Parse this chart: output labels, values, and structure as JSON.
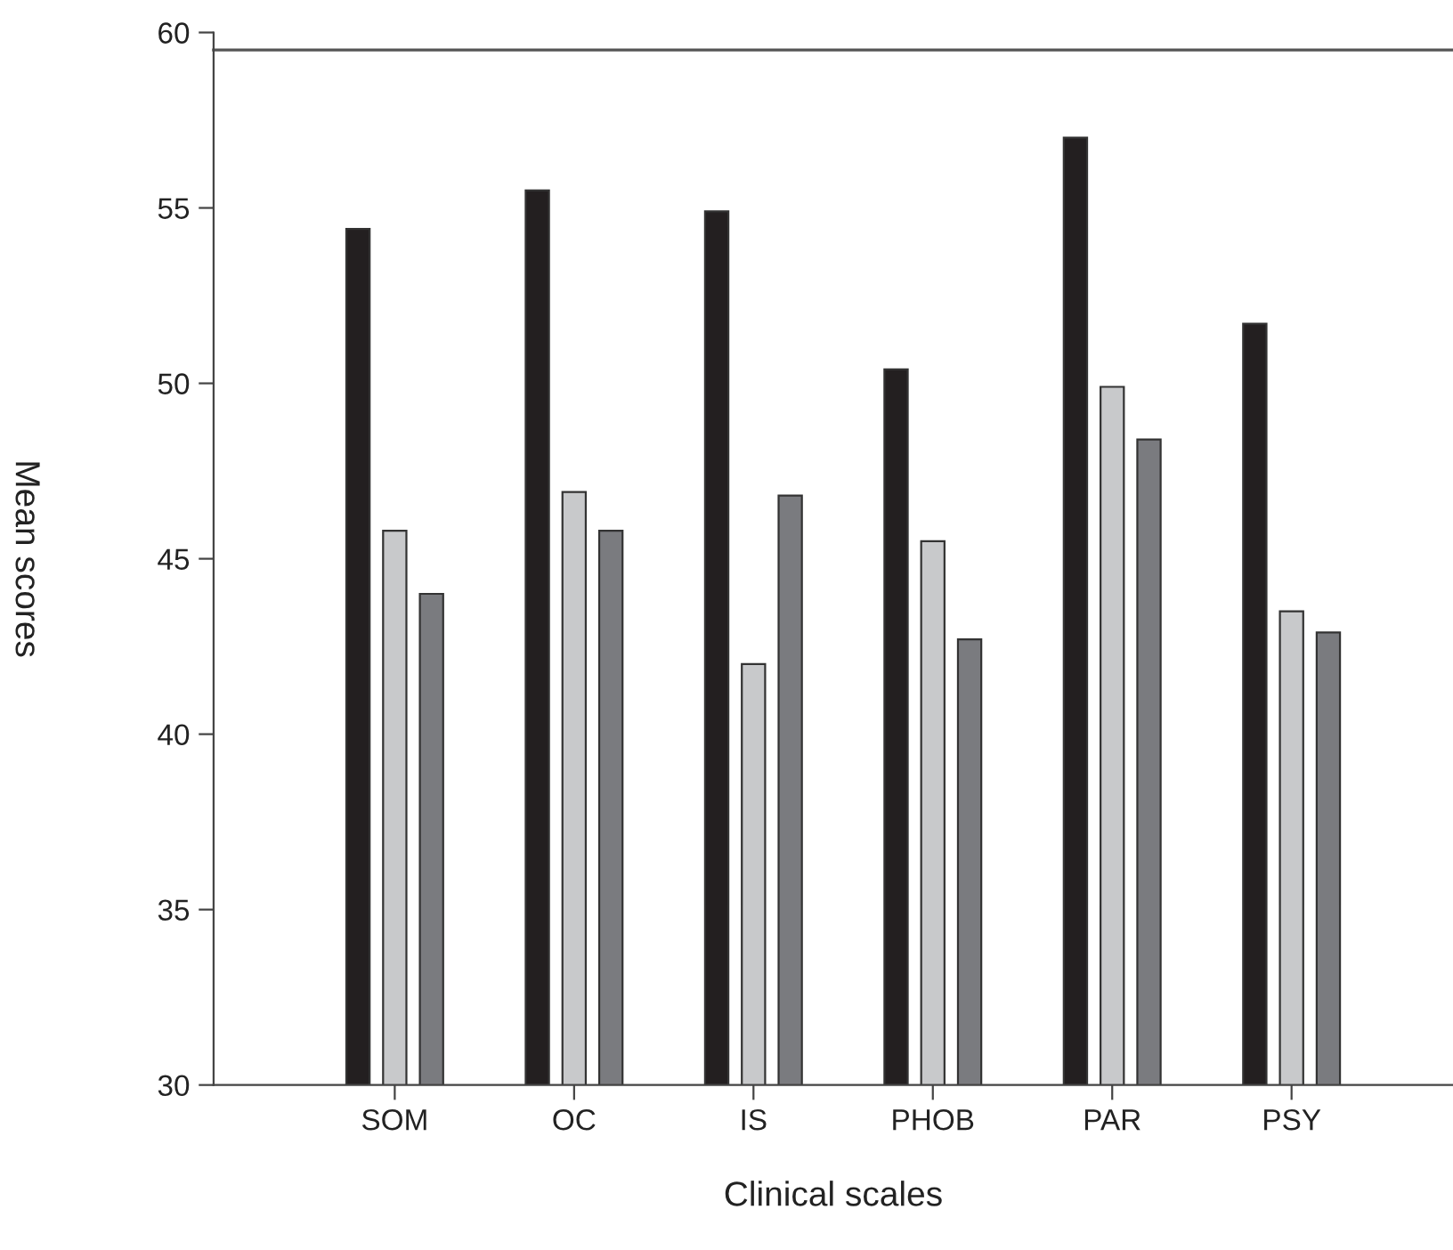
{
  "chart_data": {
    "type": "bar",
    "xlabel": "Clinical scales",
    "ylabel": "Mean scores",
    "categories": [
      "SOM",
      "OC",
      "IS",
      "PHOB",
      "PAR",
      "PSY"
    ],
    "series": [
      {
        "color": "#231f20",
        "values": [
          54.4,
          55.5,
          54.9,
          50.4,
          57.0,
          51.7
        ]
      },
      {
        "color": "#c8c9cb",
        "values": [
          45.8,
          46.9,
          42.0,
          45.5,
          49.9,
          43.5
        ]
      },
      {
        "color": "#7a7b7f",
        "values": [
          44.0,
          45.8,
          46.8,
          42.7,
          48.4,
          42.9
        ]
      }
    ],
    "ylim": [
      30,
      60
    ],
    "yticks": [
      30,
      35,
      40,
      45,
      50,
      55,
      60
    ],
    "ref_lines": [
      {
        "axis": "y",
        "value": 59.5,
        "color": "#555555"
      }
    ],
    "grid": false,
    "legend": false
  }
}
